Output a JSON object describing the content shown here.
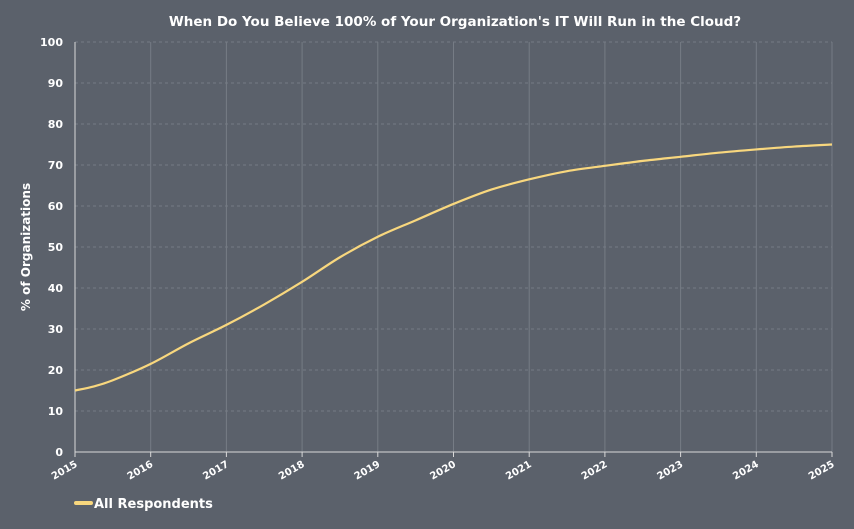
{
  "chart_data": {
    "type": "line",
    "title": "When Do You Believe 100% of Your Organization's IT Will Run in the Cloud?",
    "xlabel": "",
    "ylabel": "% of Organizations",
    "ylim": [
      0,
      100
    ],
    "xlim": [
      2015,
      2025
    ],
    "y_ticks": [
      0,
      10,
      20,
      30,
      40,
      50,
      60,
      70,
      80,
      90,
      100
    ],
    "x_ticks": [
      "2015",
      "2016",
      "2017",
      "2018",
      "2019",
      "2020",
      "2021",
      "2022",
      "2023",
      "2024",
      "2025"
    ],
    "grid": true,
    "legend_position": "bottom-left",
    "x": [
      2015,
      2015.25,
      2015.5,
      2016,
      2016.5,
      2017,
      2017.5,
      2018,
      2018.5,
      2019,
      2019.5,
      2020,
      2020.5,
      2021,
      2021.5,
      2022,
      2022.5,
      2023,
      2023.5,
      2024,
      2024.5,
      2025
    ],
    "series": [
      {
        "name": "All Respondents",
        "color": "#f8d77e",
        "values": [
          15,
          16,
          17.5,
          21.5,
          26.5,
          31,
          36,
          41.5,
          47.5,
          52.5,
          56.5,
          60.5,
          64,
          66.5,
          68.5,
          69.8,
          71,
          72,
          73,
          73.8,
          74.5,
          75
        ]
      }
    ]
  },
  "colors": {
    "background": "#5b616b",
    "grid": "#767c85",
    "axis": "#d9d9d9",
    "text": "#ffffff"
  }
}
